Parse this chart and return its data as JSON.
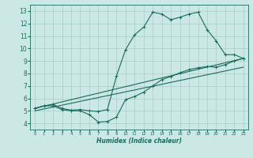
{
  "xlabel": "Humidex (Indice chaleur)",
  "xlim": [
    -0.5,
    23.5
  ],
  "ylim": [
    3.5,
    13.5
  ],
  "xticks": [
    0,
    1,
    2,
    3,
    4,
    5,
    6,
    7,
    8,
    9,
    10,
    11,
    12,
    13,
    14,
    15,
    16,
    17,
    18,
    19,
    20,
    21,
    22,
    23
  ],
  "yticks": [
    4,
    5,
    6,
    7,
    8,
    9,
    10,
    11,
    12,
    13
  ],
  "bg_color": "#cce8e4",
  "line_color": "#1a6b5a",
  "line1_x": [
    0,
    1,
    2,
    3,
    4,
    5,
    6,
    7,
    8,
    9,
    10,
    11,
    12,
    13,
    14,
    15,
    16,
    17,
    18,
    19,
    20,
    21,
    22,
    23
  ],
  "line1_y": [
    5.2,
    5.4,
    5.4,
    5.1,
    5.0,
    5.0,
    4.7,
    4.1,
    4.15,
    4.5,
    5.9,
    6.15,
    6.5,
    7.0,
    7.5,
    7.75,
    8.05,
    8.3,
    8.45,
    8.55,
    8.5,
    8.7,
    9.0,
    9.2
  ],
  "line2_x": [
    0,
    1,
    2,
    3,
    4,
    5,
    6,
    7,
    8,
    9,
    10,
    11,
    12,
    13,
    14,
    15,
    16,
    17,
    18,
    19,
    20,
    21,
    22,
    23
  ],
  "line2_y": [
    5.2,
    5.4,
    5.5,
    5.2,
    5.05,
    5.1,
    5.0,
    4.95,
    5.1,
    7.8,
    9.9,
    11.1,
    11.7,
    12.9,
    12.75,
    12.3,
    12.5,
    12.75,
    12.9,
    11.5,
    10.6,
    9.5,
    9.5,
    9.2
  ],
  "line3_x": [
    0,
    23
  ],
  "line3_y": [
    5.2,
    9.2
  ],
  "line4_x": [
    0,
    23
  ],
  "line4_y": [
    5.0,
    8.5
  ]
}
